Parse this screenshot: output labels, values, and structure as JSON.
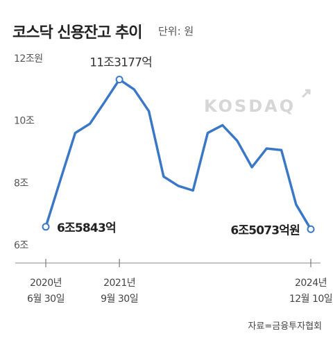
{
  "header": {
    "title": "코스닥 신용잔고 추이",
    "unit": "단위: 원"
  },
  "watermark": "KOSDAQ",
  "source": "자료=금융투자협회",
  "chart_data": {
    "type": "line",
    "title": "코스닥 신용잔고 추이",
    "ylim": [
      6,
      12
    ],
    "y_ticks": [
      {
        "value": 12,
        "label": "12조원"
      },
      {
        "value": 10,
        "label": "10조"
      },
      {
        "value": 8,
        "label": "8조"
      },
      {
        "value": 6,
        "label": "6조"
      }
    ],
    "grid": false,
    "series": [
      {
        "values": [
          6.5843,
          8.1,
          9.6,
          9.9,
          10.6,
          11.3177,
          11.0,
          10.3,
          8.2,
          7.9,
          7.75,
          9.6,
          9.85,
          9.35,
          8.5,
          9.1,
          9.05,
          7.3,
          6.5073
        ],
        "color": "#3a78c7"
      }
    ],
    "x_ticks": [
      {
        "index": 0,
        "line1": "2020년",
        "line2": "6월 30일"
      },
      {
        "index": 5,
        "line1": "2021년",
        "line2": "9월 30일"
      },
      {
        "index": 18,
        "line1": "2024년",
        "line2": "12월 10일"
      }
    ],
    "annotations": [
      {
        "index": 0,
        "text": "6조5843억"
      },
      {
        "index": 5,
        "text": "11조3177억"
      },
      {
        "index": 18,
        "text": "6조5073억원"
      }
    ]
  }
}
